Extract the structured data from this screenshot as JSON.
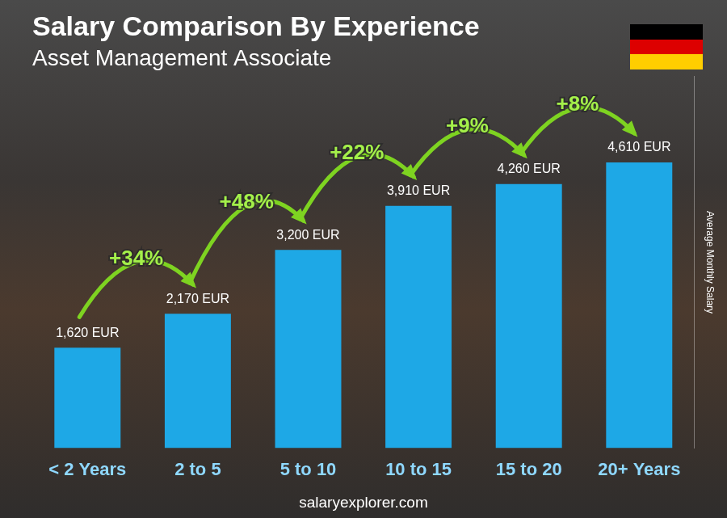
{
  "chart_data": {
    "type": "bar",
    "title": "Salary Comparison By Experience",
    "subtitle": "Asset Management Associate",
    "y_label": "Average Monthly Salary",
    "categories": [
      "< 2 Years",
      "2 to 5",
      "5 to 10",
      "10 to 15",
      "15 to 20",
      "20+ Years"
    ],
    "values": [
      1620,
      2170,
      3200,
      3910,
      4260,
      4610
    ],
    "value_labels": [
      "1,620 EUR",
      "2,170 EUR",
      "3,200 EUR",
      "3,910 EUR",
      "4,260 EUR",
      "4,610 EUR"
    ],
    "data_labels": true,
    "annotations": [
      "+34%",
      "+48%",
      "+22%",
      "+9%",
      "+8%"
    ],
    "source": "salaryexplorer.com",
    "color": "#1ea8e6",
    "ylim": [
      0,
      6000
    ],
    "grid": false,
    "tick_labels": "x"
  }
}
